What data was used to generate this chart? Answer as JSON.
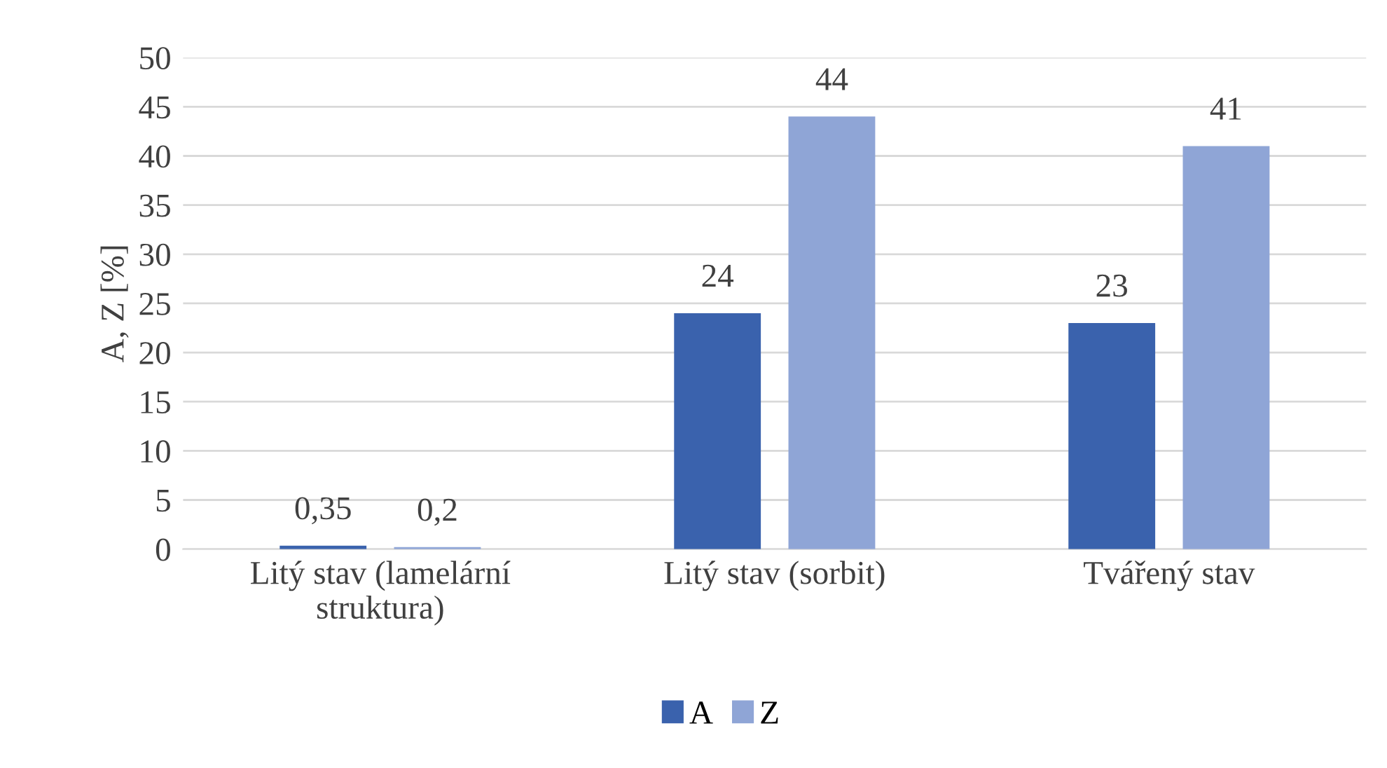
{
  "chart_data": {
    "type": "bar",
    "ylabel": "A, Z [%]",
    "categories": [
      "Litý stav (lamelární struktura)",
      "Litý stav (sorbit)",
      "Tvářený stav"
    ],
    "series": [
      {
        "name": "A",
        "color": "#3a62ad",
        "values": [
          0.35,
          24,
          23
        ],
        "value_labels": [
          "0,35",
          "24",
          "23"
        ]
      },
      {
        "name": "Z",
        "color": "#8fa5d6",
        "values": [
          0.2,
          44,
          41
        ],
        "value_labels": [
          "0,2",
          "44",
          "41"
        ]
      }
    ],
    "ylim": [
      0,
      50
    ],
    "yticks": [
      0,
      5,
      10,
      15,
      20,
      25,
      30,
      35,
      40,
      45,
      50
    ],
    "grid": "y",
    "legend": "bottom"
  }
}
